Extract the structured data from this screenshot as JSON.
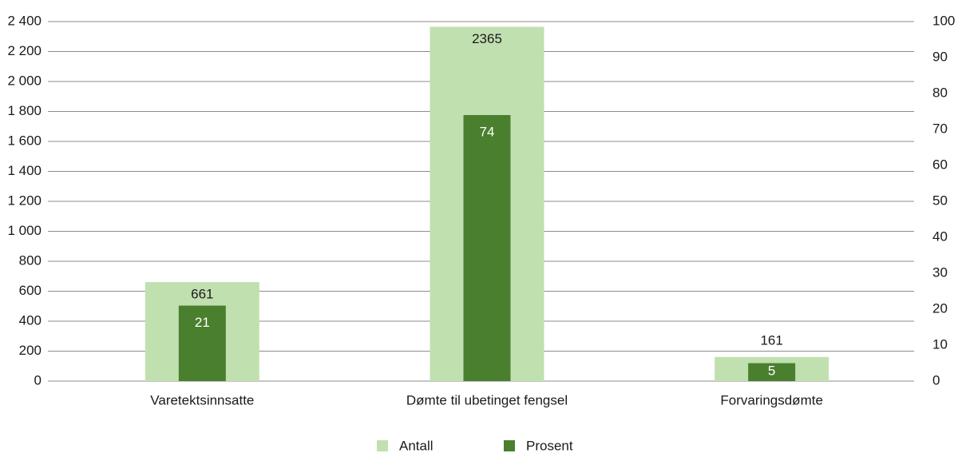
{
  "chart_data": {
    "type": "bar",
    "categories": [
      "Varetektsinnsatte",
      "Dømte til ubetinget fengsel",
      "Forvaringsdømte"
    ],
    "series": [
      {
        "name": "Antall",
        "color": "#c1e0b0",
        "values": [
          661,
          2365,
          161
        ]
      },
      {
        "name": "Prosent",
        "color": "#4a7f2e",
        "values": [
          21,
          74,
          5
        ],
        "axis": "y2"
      }
    ],
    "ylim": [
      0,
      2400
    ],
    "yticks": [
      0,
      200,
      400,
      600,
      800,
      {
        "value": 1000,
        "label": "1 000"
      },
      {
        "value": 1200,
        "label": "1 200"
      },
      {
        "value": 1400,
        "label": "1 400"
      },
      {
        "value": 1600,
        "label": "1 600"
      },
      {
        "value": 1800,
        "label": "1 800"
      },
      {
        "value": 2000,
        "label": "2 000"
      },
      {
        "value": 2200,
        "label": "2 200"
      },
      {
        "value": 2400,
        "label": "2 400"
      }
    ],
    "y2lim": [
      0,
      100
    ],
    "y2ticks": [
      0,
      10,
      20,
      30,
      40,
      50,
      60,
      70,
      80,
      90,
      100
    ],
    "grid": true,
    "legend": "bottom"
  }
}
